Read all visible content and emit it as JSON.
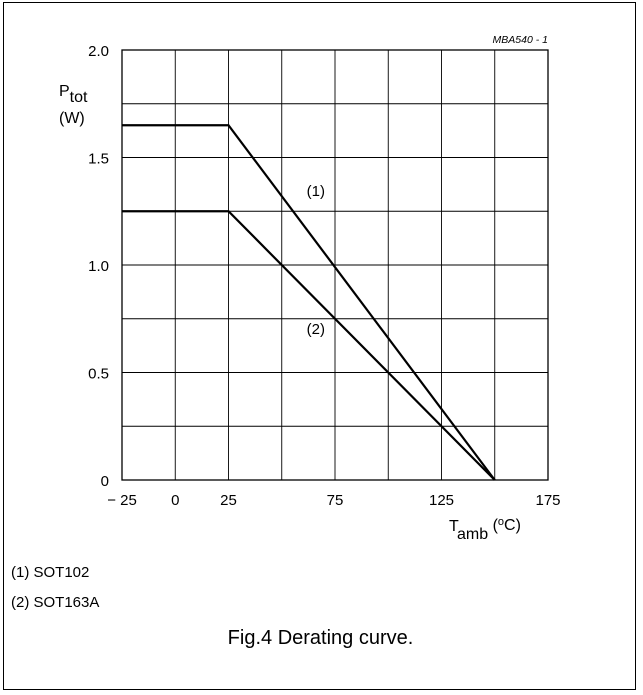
{
  "chart_data": {
    "type": "line",
    "code": "MBA540 - 1",
    "ylabel": {
      "symbol": "P",
      "sub": "tot",
      "unit": "(W)"
    },
    "xlabel": {
      "symbol": "T",
      "sub": "amb",
      "unit_open": " (",
      "unit_sup": "o",
      "unit_close": "C)"
    },
    "xlim": [
      -25,
      175
    ],
    "ylim": [
      0,
      2.0
    ],
    "x_ticks": [
      -25,
      0,
      25,
      75,
      125,
      175
    ],
    "x_tick_labels": [
      "− 25",
      "0",
      "25",
      "75",
      "125",
      "175"
    ],
    "y_ticks": [
      0,
      0.5,
      1.0,
      1.5,
      2.0
    ],
    "y_tick_labels": [
      "0",
      "0.5",
      "1.0",
      "1.5",
      "2.0"
    ],
    "x_grid": [
      0,
      25,
      50,
      75,
      100,
      125,
      150
    ],
    "y_grid": [
      0.25,
      0.5,
      0.75,
      1.0,
      1.25,
      1.5,
      1.75
    ],
    "grid": true,
    "series": [
      {
        "label": "(1)",
        "label_at": [
          66,
          1.32
        ],
        "x": [
          -25,
          25,
          150
        ],
        "y": [
          1.65,
          1.65,
          0
        ]
      },
      {
        "label": "(2)",
        "label_at": [
          66,
          0.68
        ],
        "x": [
          -25,
          25,
          150
        ],
        "y": [
          1.25,
          1.25,
          0
        ]
      }
    ]
  },
  "legend": [
    "(1) SOT102",
    "(2) SOT163A"
  ],
  "caption": "Fig.4  Derating curve."
}
